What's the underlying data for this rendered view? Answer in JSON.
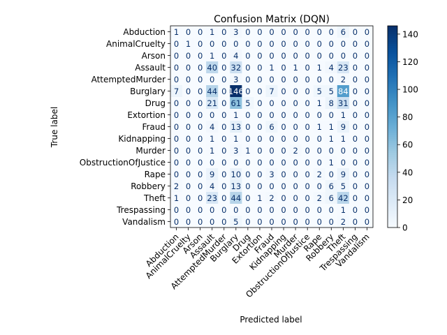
{
  "chart_data": {
    "type": "heatmap",
    "title": "Confusion Matrix (DQN)",
    "xlabel": "Predicted label",
    "ylabel": "True label",
    "labels": [
      "Abduction",
      "AnimalCruelty",
      "Arson",
      "Assault",
      "AttemptedMurder",
      "Burglary",
      "Drug",
      "Extortion",
      "Fraud",
      "Kidnapping",
      "Murder",
      "ObstructionOfJustice",
      "Rape",
      "Robbery",
      "Theft",
      "Trespassing",
      "Vandalism"
    ],
    "matrix": [
      [
        1,
        0,
        0,
        1,
        0,
        3,
        0,
        0,
        0,
        0,
        0,
        0,
        0,
        0,
        6,
        0,
        0
      ],
      [
        0,
        1,
        0,
        0,
        0,
        0,
        0,
        0,
        0,
        0,
        0,
        0,
        0,
        0,
        0,
        0,
        0
      ],
      [
        0,
        0,
        0,
        1,
        0,
        4,
        0,
        0,
        0,
        0,
        0,
        0,
        0,
        0,
        0,
        0,
        0
      ],
      [
        0,
        0,
        0,
        40,
        0,
        32,
        0,
        0,
        1,
        0,
        1,
        0,
        1,
        4,
        23,
        0,
        0
      ],
      [
        0,
        0,
        0,
        0,
        0,
        3,
        0,
        0,
        0,
        0,
        0,
        0,
        0,
        0,
        2,
        0,
        0
      ],
      [
        7,
        0,
        0,
        44,
        0,
        146,
        0,
        0,
        7,
        0,
        0,
        0,
        5,
        5,
        84,
        0,
        0
      ],
      [
        0,
        0,
        0,
        21,
        0,
        61,
        5,
        0,
        0,
        0,
        0,
        0,
        1,
        8,
        31,
        0,
        0
      ],
      [
        0,
        0,
        0,
        0,
        0,
        1,
        0,
        0,
        0,
        0,
        0,
        0,
        0,
        0,
        1,
        0,
        0
      ],
      [
        0,
        0,
        0,
        4,
        0,
        13,
        0,
        0,
        6,
        0,
        0,
        0,
        1,
        1,
        9,
        0,
        0
      ],
      [
        0,
        0,
        0,
        1,
        0,
        1,
        0,
        0,
        0,
        0,
        0,
        0,
        0,
        1,
        1,
        0,
        0
      ],
      [
        0,
        0,
        0,
        1,
        0,
        3,
        1,
        0,
        0,
        0,
        2,
        0,
        0,
        0,
        0,
        0,
        0
      ],
      [
        0,
        0,
        0,
        0,
        0,
        0,
        0,
        0,
        0,
        0,
        0,
        0,
        0,
        1,
        0,
        0,
        0
      ],
      [
        0,
        0,
        0,
        9,
        0,
        10,
        0,
        0,
        3,
        0,
        0,
        0,
        2,
        0,
        9,
        0,
        0
      ],
      [
        2,
        0,
        0,
        4,
        0,
        13,
        0,
        0,
        0,
        0,
        0,
        0,
        0,
        6,
        5,
        0,
        0
      ],
      [
        1,
        0,
        0,
        23,
        0,
        44,
        0,
        1,
        2,
        0,
        0,
        0,
        2,
        6,
        42,
        0,
        0
      ],
      [
        0,
        0,
        0,
        0,
        0,
        0,
        0,
        0,
        0,
        0,
        0,
        0,
        0,
        0,
        1,
        0,
        0
      ],
      [
        0,
        0,
        0,
        0,
        0,
        5,
        0,
        0,
        0,
        0,
        0,
        0,
        0,
        0,
        2,
        0,
        0
      ]
    ],
    "value_range": [
      0,
      146
    ],
    "colormap": "Blues",
    "colorbar_ticks": [
      "0",
      "20",
      "40",
      "60",
      "80",
      "100",
      "120",
      "140"
    ]
  }
}
